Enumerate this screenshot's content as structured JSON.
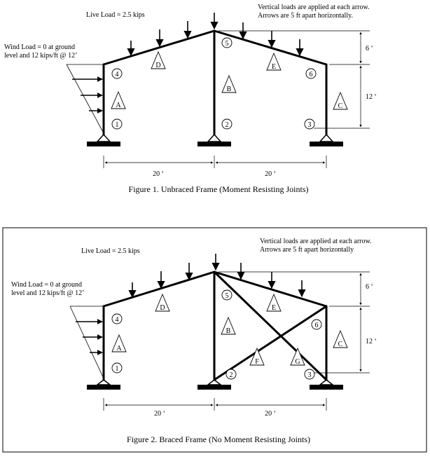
{
  "figure1": {
    "live_load": "Live Load = 2.5 kips",
    "vertical_note_line1": "Vertical loads are applied at each arrow.",
    "vertical_note_line2": "Arrows are 5 ft apart horizontally.",
    "wind_line1": "Wind Load = 0 at ground",
    "wind_line2": "level and 12 kips/ft @ 12’",
    "members": [
      "A",
      "B",
      "C",
      "D",
      "E"
    ],
    "joints": [
      "1",
      "2",
      "3",
      "4",
      "5",
      "6"
    ],
    "dim_top": "6 ‘",
    "dim_side": "12 ‘",
    "dim_left": "20 ‘",
    "dim_right": "20 ‘",
    "caption": "Figure 1.  Unbraced Frame (Moment Resisting Joints)"
  },
  "figure2": {
    "live_load": "Live Load = 2.5 kips",
    "vertical_note_line1": "Vertical loads are applied at each arrow.",
    "vertical_note_line2": "Arrows are 5 ft apart horizontally",
    "wind_line1": "Wind Load = 0 at ground",
    "wind_line2": "level and 12 kips/ft @ 12’",
    "members": [
      "A",
      "B",
      "C",
      "D",
      "E",
      "F",
      "G"
    ],
    "joints": [
      "1",
      "2",
      "3",
      "4",
      "5",
      "6"
    ],
    "dim_top": "6 ‘",
    "dim_side": "12 ‘",
    "dim_left": "20 ‘",
    "dim_right": "20 ‘",
    "caption": "Figure 2.  Braced Frame (No Moment Resisting Joints)"
  },
  "colors": {
    "ink": "#000000",
    "frame_border": "#000000",
    "background": "#ffffff"
  }
}
